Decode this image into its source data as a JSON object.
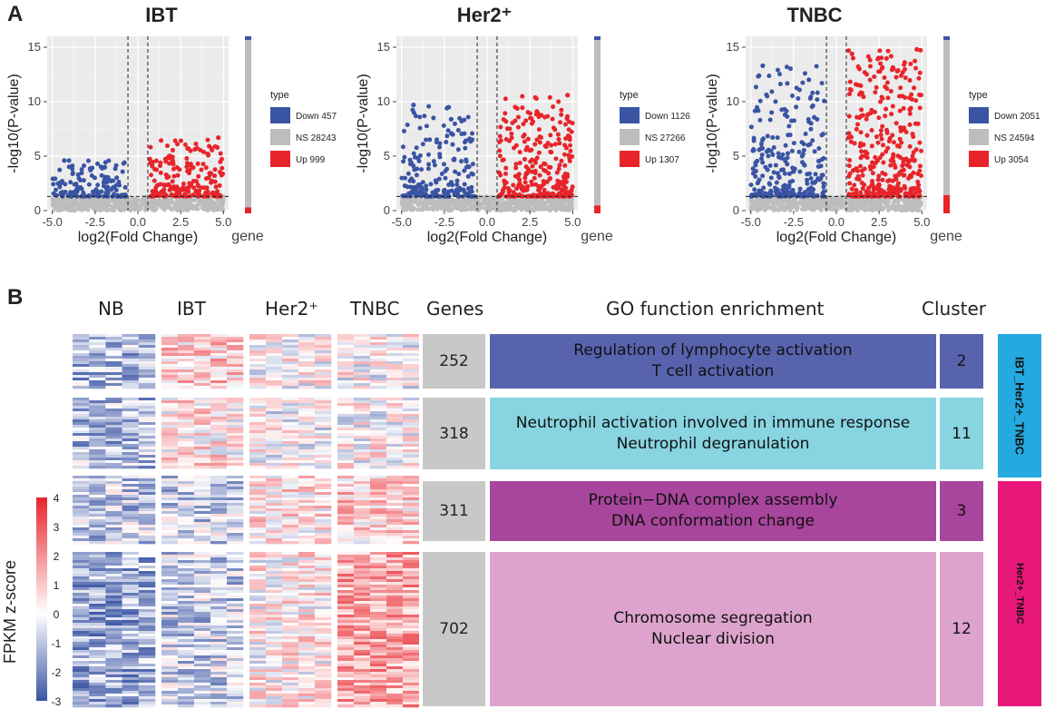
{
  "panel_a": {
    "letter": "A"
  },
  "panel_b": {
    "letter": "B"
  },
  "chart_data": [
    {
      "type": "scatter",
      "title": "IBT",
      "xlabel": "log2(Fold Change)",
      "ylabel": "-log10(P-value)",
      "xlim": [
        -5.3,
        5.3
      ],
      "ylim": [
        0,
        16
      ],
      "xticks": [
        -5.0,
        -2.5,
        0.0,
        2.5,
        5.0
      ],
      "xtick_labels": [
        "-5.0",
        "-2.5",
        "0.0",
        "2.5",
        "5.0"
      ],
      "yticks": [
        0,
        5,
        10,
        15
      ],
      "ytick_labels": [
        "0",
        "5",
        "10",
        "15"
      ],
      "fc_cutoff": [
        -0.58,
        0.58
      ],
      "p_cutoff": 1.3,
      "legend_title": "type",
      "series": [
        {
          "name": "Down",
          "count": 457,
          "legend": "Down 457",
          "color": "#3a54a4"
        },
        {
          "name": "NS",
          "count": 28243,
          "legend": "NS 28243",
          "color": "#bdbdbd"
        },
        {
          "name": "Up",
          "count": 999,
          "legend": "Up 999",
          "color": "#e8242b"
        }
      ],
      "max_down_y": 4.6,
      "max_up_y": 6.7,
      "gene_label": "gene"
    },
    {
      "type": "scatter",
      "title": "Her2⁺",
      "xlabel": "log2(Fold Change)",
      "ylabel": "-log10(P-value)",
      "xlim": [
        -5.3,
        5.3
      ],
      "ylim": [
        0,
        16
      ],
      "xticks": [
        -5.0,
        -2.5,
        0.0,
        2.5,
        5.0
      ],
      "xtick_labels": [
        "-5.0",
        "-2.5",
        "0.0",
        "2.5",
        "5.0"
      ],
      "yticks": [
        0,
        5,
        10,
        15
      ],
      "ytick_labels": [
        "0",
        "5",
        "10",
        "15"
      ],
      "fc_cutoff": [
        -0.58,
        0.58
      ],
      "p_cutoff": 1.3,
      "legend_title": "type",
      "series": [
        {
          "name": "Down",
          "count": 1126,
          "legend": "Down 1126",
          "color": "#3a54a4"
        },
        {
          "name": "NS",
          "count": 27266,
          "legend": "NS 27266",
          "color": "#bdbdbd"
        },
        {
          "name": "Up",
          "count": 1307,
          "legend": "Up 1307",
          "color": "#e8242b"
        }
      ],
      "max_down_y": 9.7,
      "max_up_y": 10.6,
      "gene_label": "gene"
    },
    {
      "type": "scatter",
      "title": "TNBC",
      "xlabel": "log2(Fold Change)",
      "ylabel": "-log10(P-value)",
      "xlim": [
        -5.3,
        5.3
      ],
      "ylim": [
        0,
        16
      ],
      "xticks": [
        -5.0,
        -2.5,
        0.0,
        2.5,
        5.0
      ],
      "xtick_labels": [
        "-5.0",
        "-2.5",
        "0.0",
        "2.5",
        "5.0"
      ],
      "yticks": [
        0,
        5,
        10,
        15
      ],
      "ytick_labels": [
        "0",
        "5",
        "10",
        "15"
      ],
      "fc_cutoff": [
        -0.58,
        0.58
      ],
      "p_cutoff": 1.3,
      "legend_title": "type",
      "series": [
        {
          "name": "Down",
          "count": 2051,
          "legend": "Down 2051",
          "color": "#3a54a4"
        },
        {
          "name": "NS",
          "count": 24594,
          "legend": "NS 24594",
          "color": "#bdbdbd"
        },
        {
          "name": "Up",
          "count": 3054,
          "legend": "Up 3054",
          "color": "#e8242b"
        }
      ],
      "max_down_y": 13.3,
      "max_up_y": 14.8,
      "gene_label": "gene"
    },
    {
      "type": "heatmap",
      "columns": [
        "NB",
        "IBT",
        "Her2⁺",
        "TNBC"
      ],
      "colorbar": {
        "label": "FPKM z-score",
        "range": [
          -3,
          4
        ],
        "ticks": [
          "4",
          "3",
          "2",
          "1",
          "0",
          "-1",
          "-2",
          "-3"
        ],
        "low_color": "#3a54a4",
        "mid_color": "#ffffff",
        "high_color": "#e8242b"
      },
      "headers": {
        "genes": "Genes",
        "go": "GO function enrichment",
        "cluster": "Cluster"
      },
      "clusters": [
        {
          "genes": 252,
          "go": [
            "Regulation of lymphocyte activation",
            "T cell activation"
          ],
          "cluster": 2,
          "color": "#5863ad",
          "col_means": [
            -1.2,
            0.9,
            0.2,
            0.1
          ]
        },
        {
          "genes": 318,
          "go": [
            "Neutrophil activation involved in immune response",
            "Neutrophil degranulation"
          ],
          "cluster": 11,
          "color": "#88d4e1",
          "col_means": [
            -1.1,
            0.5,
            0.0,
            0.1
          ]
        },
        {
          "genes": 311,
          "go": [
            "Protein−DNA complex assembly",
            "DNA conformation change"
          ],
          "cluster": 3,
          "color": "#a8459c",
          "col_means": [
            -0.9,
            -0.7,
            0.5,
            0.8
          ]
        },
        {
          "genes": 702,
          "go": [
            "Chromosome segregation",
            "Nuclear division"
          ],
          "cluster": 12,
          "color": "#dda3cd",
          "col_means": [
            -1.4,
            -0.8,
            0.3,
            1.6
          ]
        }
      ],
      "groups": [
        {
          "label": "IBT_Her2+_TNBC",
          "color": "#24a9e1",
          "clusters": [
            2,
            11
          ]
        },
        {
          "label": "Her2+_TNBC",
          "color": "#e8187a",
          "clusters": [
            3,
            12
          ]
        }
      ]
    }
  ]
}
